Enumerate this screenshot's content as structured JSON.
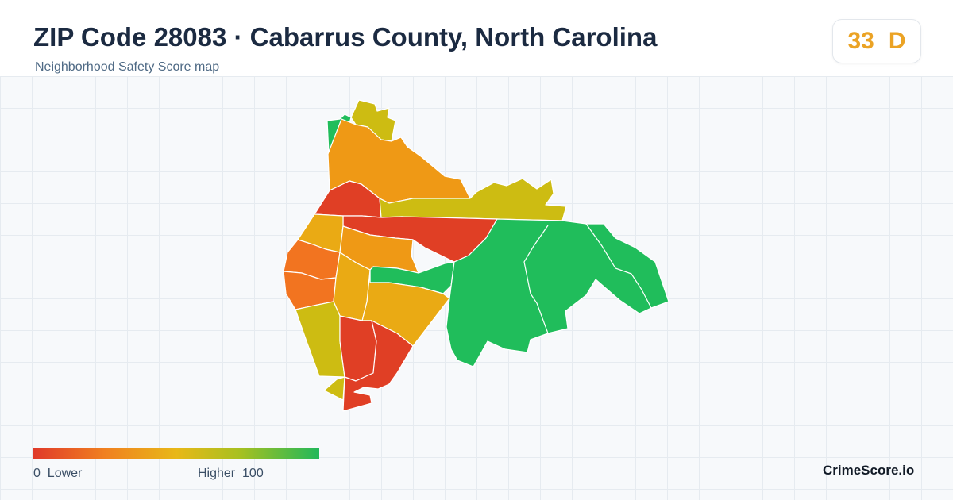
{
  "header": {
    "title": "ZIP Code 28083 · Cabarrus County, North Carolina",
    "subtitle": "Neighborhood Safety Score map"
  },
  "score": {
    "value": "33",
    "grade": "D",
    "color": "#eba325"
  },
  "legend": {
    "low_label": "0  Lower",
    "high_label": "Higher  100",
    "colors": [
      "#e03a2a",
      "#f08020",
      "#e8b818",
      "#a8c020",
      "#22b85a"
    ]
  },
  "brand": "CrimeScore.io",
  "colors": {
    "red": "#e03f25",
    "dark_orange": "#f27420",
    "orange": "#ef9915",
    "amber": "#eaaa14",
    "olive": "#cdbc12",
    "green": "#20bd5b"
  }
}
